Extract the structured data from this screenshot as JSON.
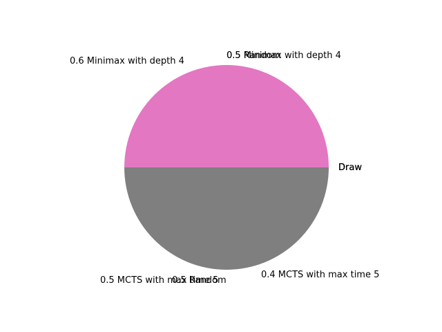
{
  "chart_data": {
    "type": "pie",
    "title": "",
    "slices": [
      {
        "label": "0.6 Minimax with depth 4",
        "value": 0,
        "color": "#1f77b4"
      },
      {
        "label": "0.5 Minimax with depth 4",
        "value": 0,
        "color": "#ff7f0e"
      },
      {
        "label": "0.5 Random",
        "value": 0,
        "color": "#2ca02c"
      },
      {
        "label": "Draw",
        "value": 0,
        "color": "#d62728"
      },
      {
        "label": "Draw",
        "value": 0,
        "color": "#9467bd"
      },
      {
        "label": "Draw",
        "value": 0,
        "color": "#8c564b"
      },
      {
        "label": "",
        "value": 1,
        "color": "#e377c2"
      },
      {
        "label": "",
        "value": 1,
        "color": "#7f7f7f"
      },
      {
        "label": "0.4 MCTS with max time 5",
        "value": 0,
        "color": "#bcbd22"
      },
      {
        "label": "0.5 MCTS with max time 5",
        "value": 0,
        "color": "#17becf"
      },
      {
        "label": "0.5 Random",
        "value": 0,
        "color": "#1f77b4"
      }
    ]
  }
}
